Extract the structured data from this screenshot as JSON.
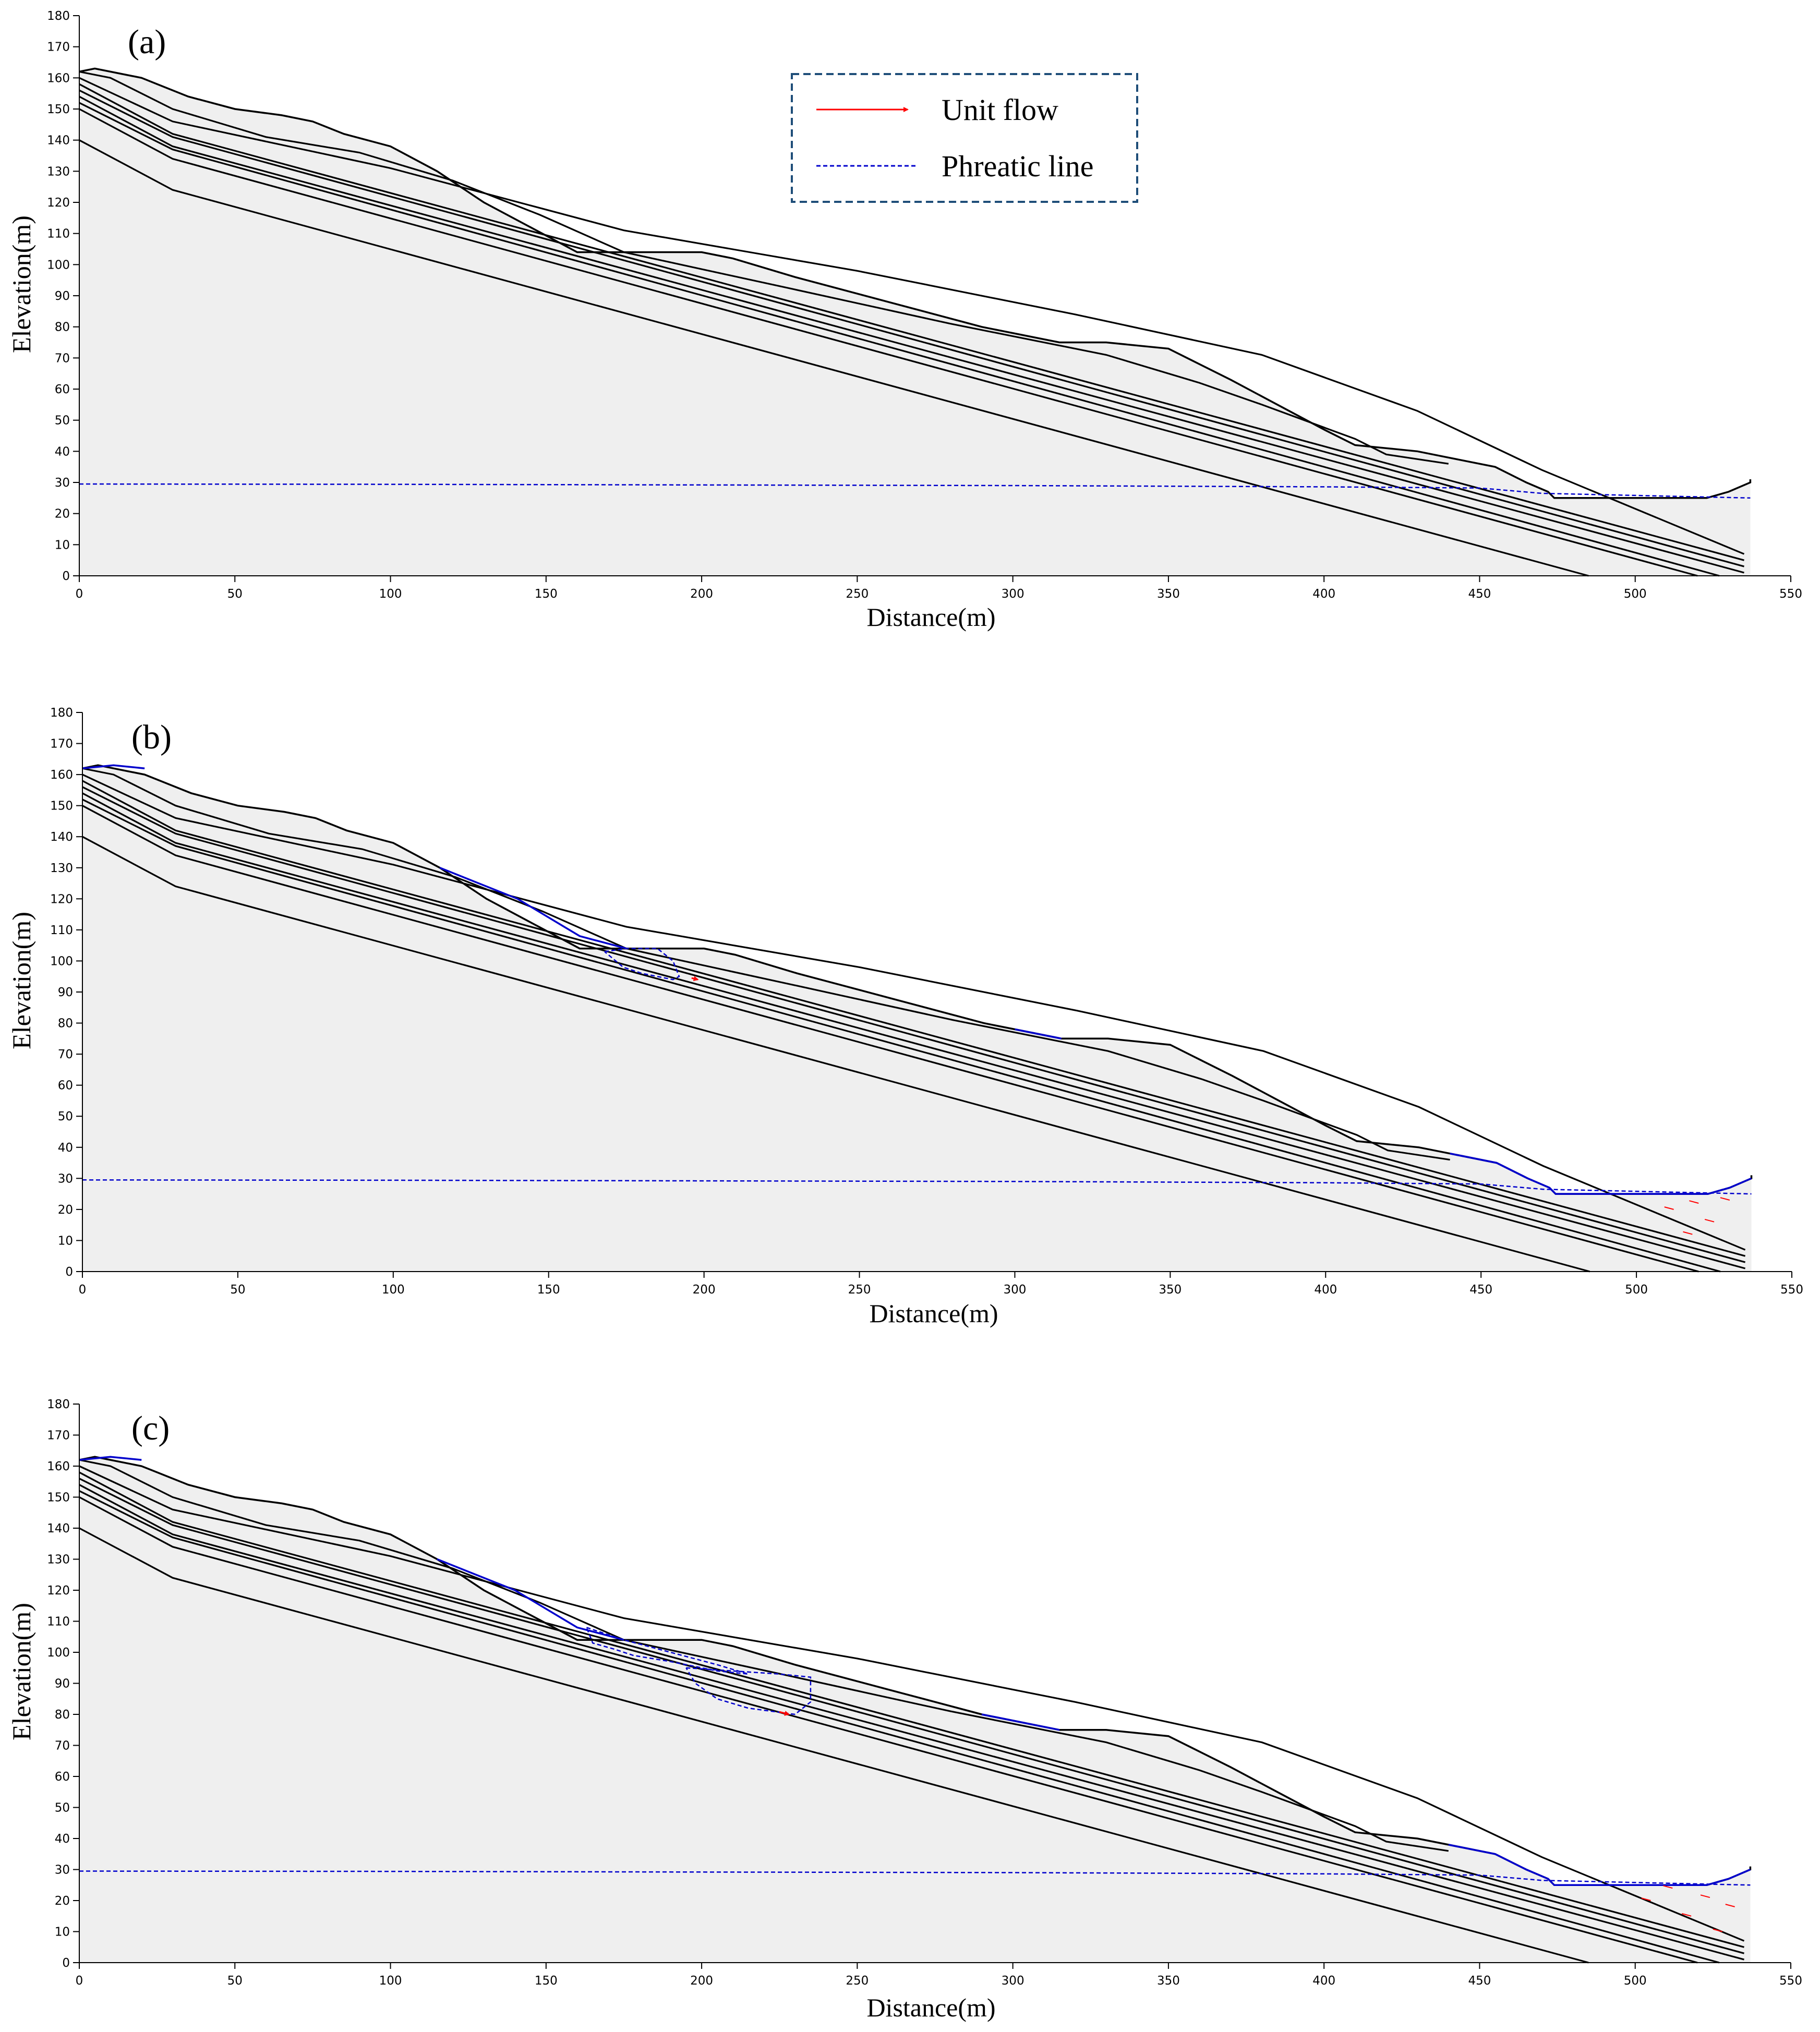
{
  "legend": {
    "items": [
      {
        "label": "Unit flow",
        "style": "red-arrow",
        "color": "#ff0000"
      },
      {
        "label": "Phreatic line",
        "style": "blue-dashed",
        "color": "#0000cc"
      }
    ],
    "placement": "top-center of panel (a)"
  },
  "colors": {
    "fill": "#efefef",
    "outline": "#000000",
    "phreatic": "#0000cc",
    "flow": "#ff0000",
    "seepage": "#0000cc"
  },
  "chart_data": [
    {
      "type": "line",
      "panel": "(a)",
      "xlabel": "Distance(m)",
      "ylabel": "Elevation(m)",
      "xlim": [
        0,
        550
      ],
      "ylim": [
        0,
        180
      ],
      "xticks": [
        0,
        50,
        100,
        150,
        200,
        250,
        300,
        350,
        400,
        450,
        500,
        550
      ],
      "yticks": [
        0,
        10,
        20,
        30,
        40,
        50,
        60,
        70,
        80,
        90,
        100,
        110,
        120,
        130,
        140,
        150,
        160,
        170,
        180
      ],
      "surface": {
        "name": "Slope surface",
        "x": [
          0,
          5,
          10,
          20,
          25,
          35,
          50,
          65,
          75,
          85,
          100,
          115,
          130,
          145,
          160,
          175,
          190,
          200,
          210,
          230,
          260,
          290,
          315,
          330,
          350,
          360,
          370,
          385,
          400,
          410,
          430,
          440,
          455,
          465,
          472,
          474,
          523,
          530,
          537,
          537
        ],
        "y": [
          162,
          163,
          162,
          160,
          158,
          154,
          150,
          148,
          146,
          142,
          138,
          130,
          120,
          112,
          104,
          104,
          104,
          104,
          102,
          96,
          88,
          80,
          75,
          75,
          73,
          68,
          63,
          55,
          47,
          42,
          40,
          38,
          35,
          30,
          27,
          25,
          25,
          27,
          30,
          31
        ]
      },
      "layers": [
        {
          "name": "Layer boundary 1",
          "x": [
            0,
            10,
            30,
            60,
            90,
            120,
            148,
            175,
            230,
            280,
            330,
            360,
            380,
            410,
            420,
            440
          ],
          "y": [
            162,
            160,
            150,
            141,
            136,
            127,
            116,
            104,
            92,
            81,
            71,
            62,
            55,
            44,
            39,
            36
          ]
        },
        {
          "name": "Layer boundary 2",
          "x": [
            0,
            30,
            100,
            175,
            250,
            320,
            380,
            430,
            470,
            535
          ],
          "y": [
            160,
            146,
            131,
            111,
            98,
            84,
            71,
            53,
            34,
            7
          ]
        },
        {
          "name": "Layer boundary 3",
          "x": [
            0,
            30,
            535
          ],
          "y": [
            158,
            142,
            5
          ]
        },
        {
          "name": "Layer boundary 4",
          "x": [
            0,
            30,
            535
          ],
          "y": [
            156,
            141,
            3
          ]
        },
        {
          "name": "Layer boundary 5",
          "x": [
            0,
            30,
            535
          ],
          "y": [
            154,
            138,
            1
          ]
        },
        {
          "name": "Layer boundary 6",
          "x": [
            0,
            30,
            527
          ],
          "y": [
            152,
            137,
            0
          ]
        },
        {
          "name": "Layer boundary 7",
          "x": [
            0,
            30,
            520
          ],
          "y": [
            150,
            134,
            0
          ]
        },
        {
          "name": "Layer boundary 8",
          "x": [
            0,
            30,
            485
          ],
          "y": [
            140,
            124,
            0
          ]
        }
      ],
      "phreatic_line": {
        "x": [
          0,
          100,
          200,
          300,
          400,
          450,
          470,
          537
        ],
        "y": [
          29.5,
          29.4,
          29.2,
          29.0,
          28.6,
          28.2,
          26.5,
          25
        ]
      },
      "seepage_zones": [],
      "unit_flow_arrows": []
    },
    {
      "type": "line",
      "panel": "(b)",
      "xlabel": "Distance(m)",
      "ylabel": "Elevation(m)",
      "xlim": [
        0,
        550
      ],
      "ylim": [
        0,
        180
      ],
      "xticks": [
        0,
        50,
        100,
        150,
        200,
        250,
        300,
        350,
        400,
        450,
        500,
        550
      ],
      "yticks": [
        0,
        10,
        20,
        30,
        40,
        50,
        60,
        70,
        80,
        90,
        100,
        110,
        120,
        130,
        140,
        150,
        160,
        170,
        180
      ],
      "surface": {
        "name": "Slope surface",
        "x": [
          0,
          5,
          10,
          20,
          25,
          35,
          50,
          65,
          75,
          85,
          100,
          115,
          130,
          145,
          160,
          175,
          190,
          200,
          210,
          230,
          260,
          290,
          315,
          330,
          350,
          360,
          370,
          385,
          400,
          410,
          430,
          440,
          455,
          465,
          472,
          474,
          523,
          530,
          537,
          537
        ],
        "y": [
          162,
          163,
          162,
          160,
          158,
          154,
          150,
          148,
          146,
          142,
          138,
          130,
          120,
          112,
          104,
          104,
          104,
          104,
          102,
          96,
          88,
          80,
          75,
          75,
          73,
          68,
          63,
          55,
          47,
          42,
          40,
          38,
          35,
          30,
          27,
          25,
          25,
          27,
          30,
          31
        ]
      },
      "layers": [
        {
          "name": "Layer boundary 1",
          "x": [
            0,
            10,
            30,
            60,
            90,
            120,
            148,
            175,
            230,
            280,
            330,
            360,
            380,
            410,
            420,
            440
          ],
          "y": [
            162,
            160,
            150,
            141,
            136,
            127,
            116,
            104,
            92,
            81,
            71,
            62,
            55,
            44,
            39,
            36
          ]
        },
        {
          "name": "Layer boundary 2",
          "x": [
            0,
            30,
            100,
            175,
            250,
            320,
            380,
            430,
            470,
            535
          ],
          "y": [
            160,
            146,
            131,
            111,
            98,
            84,
            71,
            53,
            34,
            7
          ]
        },
        {
          "name": "Layer boundary 3",
          "x": [
            0,
            30,
            535
          ],
          "y": [
            158,
            142,
            5
          ]
        },
        {
          "name": "Layer boundary 4",
          "x": [
            0,
            30,
            535
          ],
          "y": [
            156,
            141,
            3
          ]
        },
        {
          "name": "Layer boundary 5",
          "x": [
            0,
            30,
            535
          ],
          "y": [
            154,
            138,
            1
          ]
        },
        {
          "name": "Layer boundary 6",
          "x": [
            0,
            30,
            527
          ],
          "y": [
            152,
            137,
            0
          ]
        },
        {
          "name": "Layer boundary 7",
          "x": [
            0,
            30,
            520
          ],
          "y": [
            150,
            134,
            0
          ]
        },
        {
          "name": "Layer boundary 8",
          "x": [
            0,
            30,
            485
          ],
          "y": [
            140,
            124,
            0
          ]
        }
      ],
      "phreatic_line": {
        "x": [
          0,
          100,
          200,
          300,
          400,
          450,
          470,
          537
        ],
        "y": [
          29.5,
          29.4,
          29.2,
          29.0,
          28.6,
          28.2,
          26.5,
          25
        ]
      },
      "wetted_surface": [
        {
          "x": [
            0,
            10,
            20
          ],
          "y": [
            162,
            163,
            162
          ]
        },
        {
          "x": [
            115,
            140,
            160,
            175
          ],
          "y": [
            130,
            120,
            108,
            104
          ]
        },
        {
          "x": [
            300,
            315
          ],
          "y": [
            78,
            75
          ]
        },
        {
          "x": [
            440,
            455,
            465,
            472,
            474,
            523,
            530,
            537
          ],
          "y": [
            38,
            35,
            30,
            27,
            25,
            25,
            27,
            30
          ]
        }
      ],
      "seepage_zones": [
        {
          "x": [
            168,
            175,
            185,
            190,
            192,
            190,
            180,
            174,
            168
          ],
          "y": [
            103,
            104,
            104,
            100,
            95,
            94,
            96,
            98,
            103
          ]
        }
      ],
      "unit_flow_arrows": [
        {
          "x": 198,
          "y": 94,
          "dx": 2,
          "dy": -0.5
        }
      ],
      "toe_flow_arrows": [
        {
          "x": 512,
          "y": 20,
          "dx": 3,
          "dy": -0.8
        },
        {
          "x": 520,
          "y": 22,
          "dx": 3,
          "dy": -0.8
        },
        {
          "x": 525,
          "y": 16,
          "dx": 3,
          "dy": -0.8
        },
        {
          "x": 530,
          "y": 23,
          "dx": 3,
          "dy": -0.8
        },
        {
          "x": 518,
          "y": 12,
          "dx": 3,
          "dy": -0.8
        }
      ]
    },
    {
      "type": "line",
      "panel": "(c)",
      "xlabel": "Distance(m)",
      "ylabel": "Elevation(m)",
      "xlim": [
        0,
        550
      ],
      "ylim": [
        0,
        180
      ],
      "xticks": [
        0,
        50,
        100,
        150,
        200,
        250,
        300,
        350,
        400,
        450,
        500,
        550
      ],
      "yticks": [
        0,
        10,
        20,
        30,
        40,
        50,
        60,
        70,
        80,
        90,
        100,
        110,
        120,
        130,
        140,
        150,
        160,
        170,
        180
      ],
      "surface": {
        "name": "Slope surface",
        "x": [
          0,
          5,
          10,
          20,
          25,
          35,
          50,
          65,
          75,
          85,
          100,
          115,
          130,
          145,
          160,
          175,
          190,
          200,
          210,
          230,
          260,
          290,
          315,
          330,
          350,
          360,
          370,
          385,
          400,
          410,
          430,
          440,
          455,
          465,
          472,
          474,
          523,
          530,
          537,
          537
        ],
        "y": [
          162,
          163,
          162,
          160,
          158,
          154,
          150,
          148,
          146,
          142,
          138,
          130,
          120,
          112,
          104,
          104,
          104,
          104,
          102,
          96,
          88,
          80,
          75,
          75,
          73,
          68,
          63,
          55,
          47,
          42,
          40,
          38,
          35,
          30,
          27,
          25,
          25,
          27,
          30,
          31
        ]
      },
      "layers": [
        {
          "name": "Layer boundary 1",
          "x": [
            0,
            10,
            30,
            60,
            90,
            120,
            148,
            175,
            230,
            280,
            330,
            360,
            380,
            410,
            420,
            440
          ],
          "y": [
            162,
            160,
            150,
            141,
            136,
            127,
            116,
            104,
            92,
            81,
            71,
            62,
            55,
            44,
            39,
            36
          ]
        },
        {
          "name": "Layer boundary 2",
          "x": [
            0,
            30,
            100,
            175,
            250,
            320,
            380,
            430,
            470,
            535
          ],
          "y": [
            160,
            146,
            131,
            111,
            98,
            84,
            71,
            53,
            34,
            7
          ]
        },
        {
          "name": "Layer boundary 3",
          "x": [
            0,
            30,
            535
          ],
          "y": [
            158,
            142,
            5
          ]
        },
        {
          "name": "Layer boundary 4",
          "x": [
            0,
            30,
            535
          ],
          "y": [
            156,
            141,
            3
          ]
        },
        {
          "name": "Layer boundary 5",
          "x": [
            0,
            30,
            535
          ],
          "y": [
            154,
            138,
            1
          ]
        },
        {
          "name": "Layer boundary 6",
          "x": [
            0,
            30,
            527
          ],
          "y": [
            152,
            137,
            0
          ]
        },
        {
          "name": "Layer boundary 7",
          "x": [
            0,
            30,
            520
          ],
          "y": [
            150,
            134,
            0
          ]
        },
        {
          "name": "Layer boundary 8",
          "x": [
            0,
            30,
            485
          ],
          "y": [
            140,
            124,
            0
          ]
        }
      ],
      "phreatic_line": {
        "x": [
          0,
          100,
          200,
          300,
          400,
          450,
          470,
          537
        ],
        "y": [
          29.5,
          29.4,
          29.2,
          29.0,
          28.6,
          28.2,
          26.5,
          25
        ]
      },
      "wetted_surface": [
        {
          "x": [
            0,
            10,
            20
          ],
          "y": [
            162,
            163,
            162
          ]
        },
        {
          "x": [
            115,
            140,
            160,
            175
          ],
          "y": [
            130,
            120,
            108,
            104
          ]
        },
        {
          "x": [
            290,
            300,
            315
          ],
          "y": [
            80,
            78,
            75
          ]
        },
        {
          "x": [
            440,
            455,
            465,
            472,
            474,
            523,
            530,
            537
          ],
          "y": [
            38,
            35,
            30,
            27,
            25,
            25,
            27,
            30
          ]
        }
      ],
      "seepage_zones": [
        {
          "x": [
            163,
            175,
            190,
            205,
            215,
            205,
            190,
            178,
            172,
            165,
            163
          ],
          "y": [
            108,
            104,
            100,
            96,
            93,
            94,
            97,
            99,
            101,
            103,
            108
          ]
        },
        {
          "x": [
            195,
            210,
            225,
            235,
            235,
            230,
            215,
            205,
            198,
            195
          ],
          "y": [
            95,
            94,
            93,
            92,
            84,
            80,
            82,
            85,
            90,
            95
          ]
        }
      ],
      "unit_flow_arrows": [
        {
          "x": 228,
          "y": 80,
          "dx": 3,
          "dy": -0.8
        }
      ],
      "toe_flow_arrows": [
        {
          "x": 505,
          "y": 20,
          "dx": 3,
          "dy": -0.8
        },
        {
          "x": 512,
          "y": 24,
          "dx": 3,
          "dy": -0.8
        },
        {
          "x": 518,
          "y": 15,
          "dx": 3,
          "dy": -0.8
        },
        {
          "x": 524,
          "y": 21,
          "dx": 3,
          "dy": -0.8
        },
        {
          "x": 528,
          "y": 10,
          "dx": 3,
          "dy": -0.8
        },
        {
          "x": 532,
          "y": 18,
          "dx": 3,
          "dy": -0.8
        }
      ]
    }
  ]
}
